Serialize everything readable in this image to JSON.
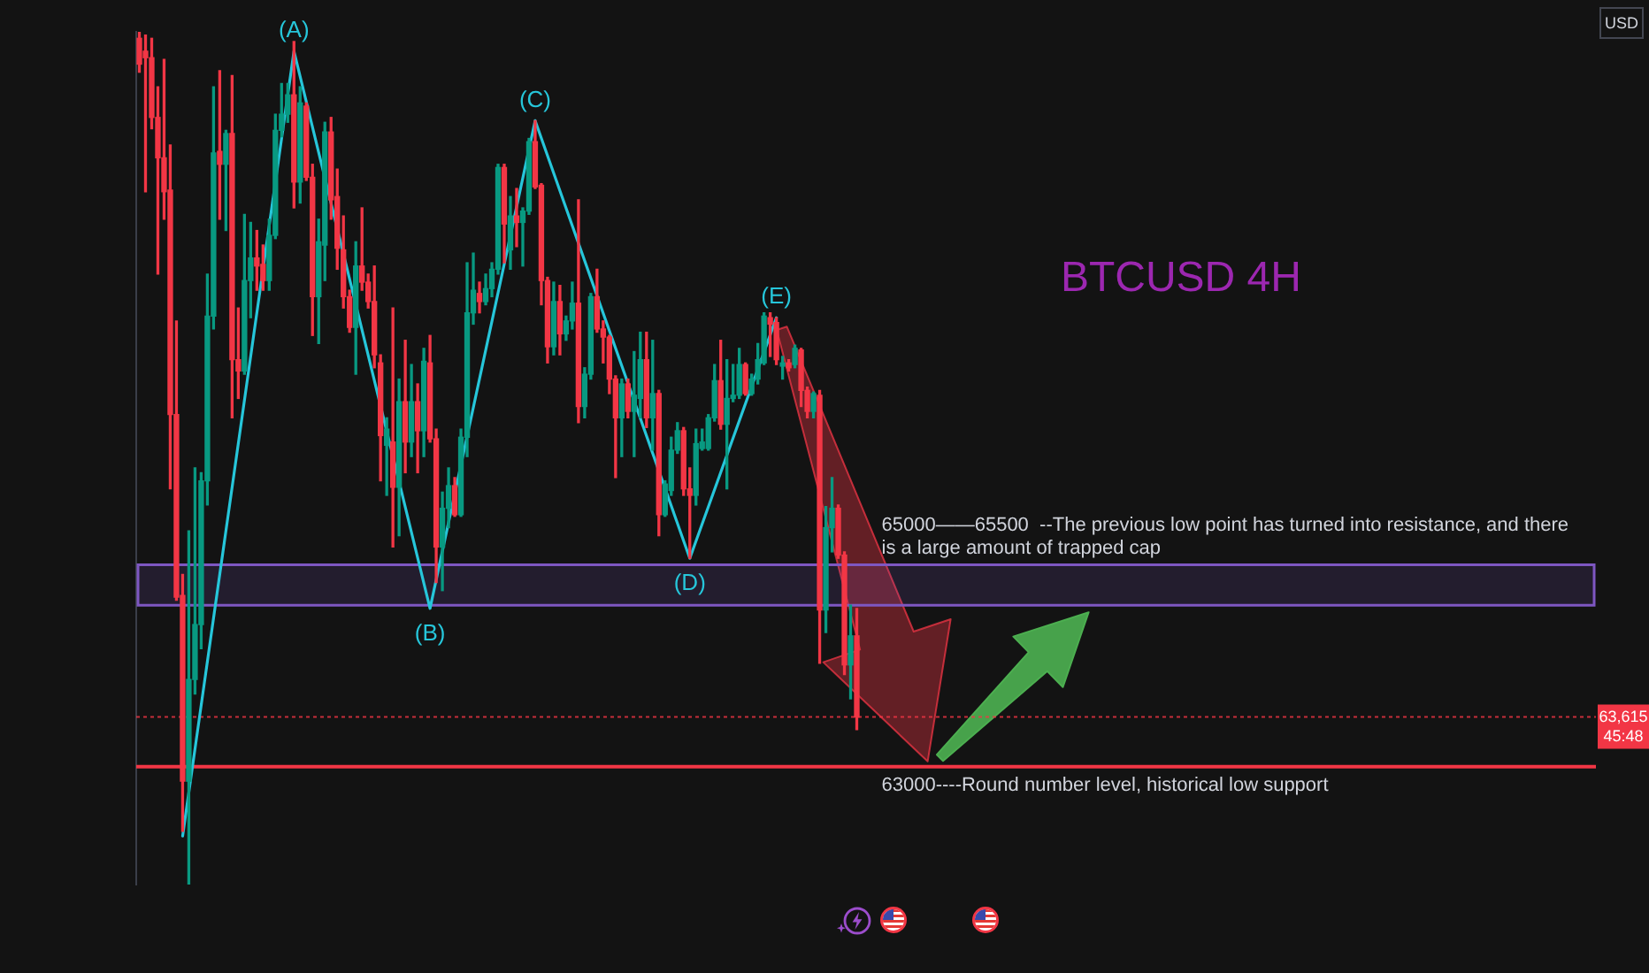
{
  "chart_data": {
    "type": "candlestick",
    "title": "BTCUSD 4H",
    "tick_labels": false,
    "ylim": [
      61540,
      72100
    ],
    "categories": [
      null,
      null,
      null,
      null,
      null,
      null,
      null,
      null,
      null,
      null,
      null,
      null,
      null,
      null,
      null,
      null,
      null,
      null,
      null,
      null,
      null,
      null,
      null,
      null,
      null,
      null,
      null,
      null,
      null,
      null,
      null,
      null,
      null,
      null,
      null,
      null,
      null,
      null,
      null,
      null,
      null,
      null,
      null,
      null,
      null,
      null,
      null,
      null,
      null,
      null,
      null,
      null,
      null,
      null,
      null,
      null,
      null,
      null,
      null,
      null,
      null,
      null,
      null,
      null,
      null,
      null,
      null,
      null,
      null,
      null,
      null,
      null,
      null,
      null,
      null,
      null,
      null,
      null,
      null,
      null,
      null,
      null,
      null,
      null,
      null,
      null,
      null,
      null,
      null,
      null,
      null,
      null,
      null,
      null,
      null,
      null,
      null,
      null,
      null,
      null,
      null,
      null,
      null,
      null,
      null,
      null,
      null,
      null,
      null,
      null,
      null,
      null,
      null,
      null,
      null,
      null,
      null
    ],
    "ohlc": [
      [
        72020,
        72100,
        71600,
        71700
      ],
      [
        71860,
        72060,
        70120,
        71780
      ],
      [
        71780,
        72020,
        70900,
        71040
      ],
      [
        71040,
        71420,
        69100,
        70540
      ],
      [
        70540,
        71760,
        69780,
        70120
      ],
      [
        70140,
        70700,
        66440,
        67360
      ],
      [
        67360,
        68520,
        65060,
        65100
      ],
      [
        65120,
        65380,
        62200,
        62820
      ],
      [
        62820,
        65920,
        61540,
        64080
      ],
      [
        64080,
        66700,
        63900,
        64760
      ],
      [
        64760,
        66640,
        64460,
        66540
      ],
      [
        66540,
        69100,
        66240,
        68580
      ],
      [
        68580,
        71420,
        68420,
        70600
      ],
      [
        70620,
        71620,
        69780,
        70460
      ],
      [
        70460,
        70880,
        69640,
        70840
      ],
      [
        70840,
        71560,
        67320,
        68040
      ],
      [
        68040,
        68680,
        67560,
        67900
      ],
      [
        67900,
        69840,
        67860,
        69020
      ],
      [
        69020,
        69740,
        68560,
        69300
      ],
      [
        69300,
        69640,
        68900,
        69200
      ],
      [
        69220,
        69460,
        68900,
        69020
      ],
      [
        69020,
        69780,
        68900,
        69580
      ],
      [
        69580,
        71080,
        69540,
        70880
      ],
      [
        70880,
        71460,
        70800,
        71080
      ],
      [
        71080,
        71460,
        70980,
        71320
      ],
      [
        71320,
        71980,
        69920,
        70240
      ],
      [
        70240,
        71420,
        69980,
        71220
      ],
      [
        71180,
        71220,
        70260,
        70300
      ],
      [
        70300,
        70460,
        68340,
        68820
      ],
      [
        68820,
        69780,
        68240,
        69500
      ],
      [
        69460,
        70980,
        69020,
        70860
      ],
      [
        70860,
        71040,
        69780,
        70020
      ],
      [
        70060,
        70400,
        69160,
        69420
      ],
      [
        69400,
        69820,
        68680,
        68820
      ],
      [
        68820,
        68900,
        68380,
        68440
      ],
      [
        68440,
        69500,
        67860,
        69200
      ],
      [
        69200,
        69920,
        68900,
        69000
      ],
      [
        69000,
        69100,
        68680,
        68760
      ],
      [
        68760,
        69200,
        67940,
        68100
      ],
      [
        68000,
        68100,
        66540,
        67100
      ],
      [
        66980,
        67320,
        66360,
        67180
      ],
      [
        67020,
        68680,
        65720,
        66460
      ],
      [
        66460,
        67800,
        65860,
        67520
      ],
      [
        67520,
        68280,
        66640,
        67020
      ],
      [
        67020,
        67980,
        66840,
        67520
      ],
      [
        67520,
        67740,
        66640,
        67160
      ],
      [
        67160,
        68180,
        66840,
        68020
      ],
      [
        68000,
        68340,
        67020,
        67060
      ],
      [
        67060,
        67180,
        65280,
        65720
      ],
      [
        65720,
        66400,
        65180,
        66200
      ],
      [
        66200,
        66700,
        65960,
        66480
      ],
      [
        66480,
        66580,
        66100,
        66120
      ],
      [
        66120,
        67180,
        66100,
        67080
      ],
      [
        67080,
        69240,
        66840,
        68620
      ],
      [
        68620,
        69360,
        68480,
        68900
      ],
      [
        68860,
        69000,
        68620,
        68760
      ],
      [
        68760,
        69100,
        68720,
        68920
      ],
      [
        68920,
        69240,
        68820,
        69160
      ],
      [
        69160,
        70460,
        69100,
        70420
      ],
      [
        70420,
        70460,
        69240,
        69720
      ],
      [
        69400,
        70060,
        69160,
        69820
      ],
      [
        69820,
        70160,
        69440,
        69740
      ],
      [
        69740,
        69920,
        69200,
        69880
      ],
      [
        69880,
        70780,
        69840,
        70740
      ],
      [
        70740,
        71000,
        70160,
        70180
      ],
      [
        70200,
        70220,
        68720,
        69020
      ],
      [
        69020,
        69060,
        68000,
        68200
      ],
      [
        68200,
        69000,
        68100,
        68760
      ],
      [
        68760,
        68960,
        68100,
        68360
      ],
      [
        68360,
        68580,
        68280,
        68520
      ],
      [
        68520,
        69000,
        68420,
        68740
      ],
      [
        68740,
        70020,
        67260,
        67460
      ],
      [
        67460,
        67940,
        67320,
        67860
      ],
      [
        67860,
        68860,
        67800,
        68820
      ],
      [
        68820,
        69160,
        68380,
        68420
      ],
      [
        68420,
        68520,
        68000,
        68320
      ],
      [
        68320,
        68340,
        67620,
        67800
      ],
      [
        67800,
        67840,
        66580,
        67320
      ],
      [
        67320,
        67800,
        66840,
        67740
      ],
      [
        67740,
        67800,
        67320,
        67400
      ],
      [
        67400,
        68140,
        66840,
        67600
      ],
      [
        67560,
        68380,
        67320,
        68040
      ],
      [
        68040,
        68380,
        67200,
        67320
      ],
      [
        67320,
        68280,
        66920,
        67620
      ],
      [
        67620,
        67660,
        65860,
        66120
      ],
      [
        66120,
        66540,
        66100,
        66500
      ],
      [
        66420,
        67080,
        66360,
        66920
      ],
      [
        66920,
        67260,
        66880,
        67160
      ],
      [
        67160,
        67200,
        66360,
        66440
      ],
      [
        66440,
        66700,
        65580,
        66360
      ],
      [
        66360,
        67180,
        66240,
        67000
      ],
      [
        66940,
        67180,
        66920,
        67020
      ],
      [
        66940,
        67360,
        66920,
        67320
      ],
      [
        67320,
        67980,
        67280,
        67780
      ],
      [
        67780,
        68280,
        67180,
        67240
      ],
      [
        67240,
        68040,
        66440,
        67560
      ],
      [
        67560,
        67980,
        67520,
        67600
      ],
      [
        67600,
        68180,
        67560,
        67980
      ],
      [
        67980,
        68000,
        67600,
        67620
      ],
      [
        67620,
        67860,
        67600,
        67800
      ],
      [
        67800,
        68240,
        67740,
        68040
      ],
      [
        68000,
        68620,
        67980,
        68580
      ],
      [
        68560,
        68620,
        68080,
        68480
      ],
      [
        68500,
        68560,
        67980,
        68040
      ],
      [
        67960,
        68080,
        67800,
        68000
      ],
      [
        68000,
        68040,
        67900,
        67940
      ],
      [
        67980,
        68220,
        67940,
        68180
      ],
      [
        68160,
        68180,
        67460,
        67660
      ],
      [
        67660,
        67700,
        67320,
        67400
      ],
      [
        67400,
        67640,
        67320,
        67620
      ],
      [
        67600,
        67660,
        64280,
        64940
      ],
      [
        64940,
        66220,
        64660,
        65960
      ],
      [
        65960,
        66580,
        65660,
        66200
      ],
      [
        66200,
        66240,
        65580,
        65620
      ],
      [
        65620,
        65660,
        64140,
        64260
      ],
      [
        64260,
        65000,
        63840,
        64620
      ],
      [
        64620,
        64960,
        63460,
        63615
      ]
    ],
    "colors": [
      "#f23645",
      "#f23645",
      "#f23645",
      "#f23645",
      "#f23645",
      "#f23645",
      "#f23645",
      "#f23645",
      "#089981",
      "#089981",
      "#089981",
      "#089981",
      "#089981",
      "#f23645",
      "#089981",
      "#f23645",
      "#f23645",
      "#089981",
      "#089981",
      "#f23645",
      "#f23645",
      "#089981",
      "#089981",
      "#089981",
      "#089981",
      "#f23645",
      "#089981",
      "#f23645",
      "#f23645",
      "#089981",
      "#089981",
      "#f23645",
      "#f23645",
      "#f23645",
      "#f23645",
      "#089981",
      "#f23645",
      "#f23645",
      "#f23645",
      "#f23645",
      "#089981",
      "#f23645",
      "#089981",
      "#f23645",
      "#089981",
      "#f23645",
      "#089981",
      "#f23645",
      "#f23645",
      "#089981",
      "#089981",
      "#f23645",
      "#089981",
      "#089981",
      "#089981",
      "#f23645",
      "#089981",
      "#089981",
      "#089981",
      "#f23645",
      "#089981",
      "#f23645",
      "#089981",
      "#089981",
      "#f23645",
      "#f23645",
      "#f23645",
      "#089981",
      "#f23645",
      "#089981",
      "#089981",
      "#f23645",
      "#089981",
      "#089981",
      "#f23645",
      "#f23645",
      "#f23645",
      "#f23645",
      "#089981",
      "#f23645",
      "#089981",
      "#089981",
      "#f23645",
      "#089981",
      "#f23645",
      "#089981",
      "#089981",
      "#089981",
      "#f23645",
      "#f23645",
      "#089981",
      "#089981",
      "#089981",
      "#089981",
      "#f23645",
      "#089981",
      "#089981",
      "#089981",
      "#f23645",
      "#089981",
      "#089981",
      "#089981",
      "#f23645",
      "#f23645",
      "#089981",
      "#f23645",
      "#089981",
      "#f23645",
      "#f23645",
      "#089981",
      "#f23645",
      "#089981",
      "#089981",
      "#f23645",
      "#f23645",
      "#089981",
      "#f23645"
    ],
    "series": [
      {
        "type": "line",
        "color": "#26c6da",
        "values": [
          null,
          null,
          null,
          null,
          null,
          null,
          null,
          62140,
          null,
          null,
          null,
          null,
          null,
          null,
          null,
          null,
          null,
          null,
          null,
          null,
          null,
          null,
          null,
          null,
          null,
          71860,
          null,
          null,
          null,
          null,
          null,
          null,
          null,
          null,
          null,
          null,
          null,
          null,
          null,
          null,
          null,
          null,
          null,
          null,
          null,
          null,
          null,
          64960,
          null,
          null,
          null,
          null,
          null,
          null,
          null,
          null,
          null,
          null,
          null,
          null,
          null,
          null,
          null,
          null,
          71000,
          null,
          null,
          null,
          null,
          null,
          null,
          null,
          null,
          null,
          null,
          null,
          null,
          null,
          null,
          null,
          null,
          null,
          null,
          null,
          null,
          null,
          null,
          null,
          null,
          65580,
          null,
          null,
          null,
          null,
          null,
          null,
          null,
          null,
          null,
          null,
          null,
          null,
          null,
          68560,
          null,
          null,
          null,
          null,
          null,
          null,
          null,
          null,
          null,
          null,
          null,
          null,
          null
        ],
        "value_labels": [
          null,
          null,
          null,
          null,
          null,
          null,
          null,
          null,
          null,
          null,
          null,
          null,
          null,
          null,
          null,
          null,
          null,
          null,
          null,
          null,
          null,
          null,
          null,
          null,
          null,
          "(A)",
          null,
          null,
          null,
          null,
          null,
          null,
          null,
          null,
          null,
          null,
          null,
          null,
          null,
          null,
          null,
          null,
          null,
          null,
          null,
          null,
          null,
          "(B)",
          null,
          null,
          null,
          null,
          null,
          null,
          null,
          null,
          null,
          null,
          null,
          null,
          null,
          null,
          null,
          null,
          "(C)",
          null,
          null,
          null,
          null,
          null,
          null,
          null,
          null,
          null,
          null,
          null,
          null,
          null,
          null,
          null,
          null,
          null,
          null,
          null,
          null,
          null,
          null,
          null,
          null,
          "(D)",
          null,
          null,
          null,
          null,
          null,
          null,
          null,
          null,
          null,
          null,
          null,
          null,
          null,
          "(E)",
          null,
          null,
          null,
          null,
          null,
          null,
          null,
          null,
          null,
          null,
          null,
          null,
          null
        ]
      }
    ],
    "bands": [
      {
        "axis": "y",
        "from": 65000,
        "to": 65500,
        "label": "65000——65500  --The previous low point has turned into resistance, and there is a large amount of trapped cap",
        "color": "#7e57c2"
      }
    ],
    "ref_lines": [
      {
        "axis": "y",
        "value": 63000,
        "label": "63000----Round number level, historical low support",
        "color": "#f23645",
        "line_style": "solid"
      },
      {
        "axis": "y",
        "value": 63615,
        "label": "63,615",
        "color": "#f23645",
        "line_style": "dotted"
      }
    ],
    "annotations": [
      "USD",
      "45:48"
    ]
  }
}
